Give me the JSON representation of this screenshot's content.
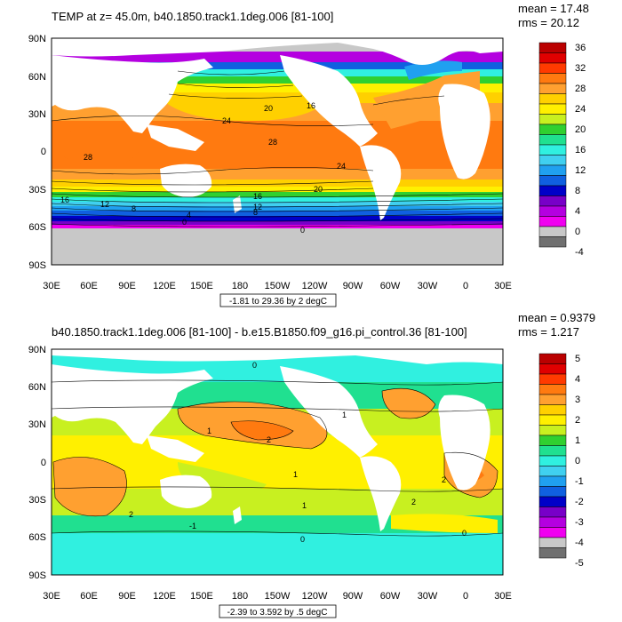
{
  "panels": [
    {
      "title": "TEMP at z=  45.0m, b40.1850.track1.1deg.006 [81-100]",
      "mean_text": "mean = 17.48",
      "rms_text": "rms = 20.12",
      "range_note": "-1.81 to 29.36 by 2 degC",
      "colorbar_labels": [
        "36",
        "32",
        "28",
        "24",
        "20",
        "16",
        "12",
        "8",
        "4",
        "0",
        "-4"
      ],
      "colorbar_colors": [
        "#ba0000",
        "#e00000",
        "#ff3a00",
        "#ff7a10",
        "#ffa030",
        "#ffd000",
        "#fff000",
        "#c8f020",
        "#30d030",
        "#20e090",
        "#30f0e0",
        "#40d0f0",
        "#20a0f0",
        "#1060e0",
        "#0000c8",
        "#7800c8",
        "#b400e0",
        "#f000f0",
        "#c8c8c8",
        "#707070"
      ],
      "contour_labels": [
        "28",
        "24",
        "28",
        "24",
        "20",
        "16",
        "16",
        "12",
        "12",
        "8",
        "8",
        "4",
        "0",
        "0",
        "16",
        "20"
      ]
    },
    {
      "title": "b40.1850.track1.1deg.006 [81-100] - b.e15.B1850.f09_g16.pi_control.36 [81-100]",
      "mean_text": "mean = 0.9379",
      "rms_text": "rms = 1.217",
      "range_note": "-2.39 to 3.592 by .5 degC",
      "colorbar_labels": [
        "5",
        "4",
        "3",
        "2",
        "1",
        "0",
        "-1",
        "-2",
        "-3",
        "-4",
        "-5"
      ],
      "colorbar_colors": [
        "#ba0000",
        "#e00000",
        "#ff3a00",
        "#ff7a10",
        "#ffa030",
        "#ffd000",
        "#fff000",
        "#c8f020",
        "#30d030",
        "#20e090",
        "#30f0e0",
        "#40d0f0",
        "#20a0f0",
        "#1060e0",
        "#0000c8",
        "#7800c8",
        "#b400e0",
        "#f000f0",
        "#c8c8c8",
        "#707070"
      ],
      "contour_labels": [
        "0",
        "2",
        "1",
        "1",
        "2",
        "1",
        "0",
        "2",
        "2",
        "1",
        "-1",
        "0"
      ]
    }
  ],
  "x_tick_labels": [
    "30E",
    "60E",
    "90E",
    "120E",
    "150E",
    "180",
    "150W",
    "120W",
    "90W",
    "60W",
    "30W",
    "0",
    "30E"
  ],
  "y_tick_labels": [
    "90N",
    "60N",
    "30N",
    "0",
    "30S",
    "60S",
    "90S"
  ]
}
